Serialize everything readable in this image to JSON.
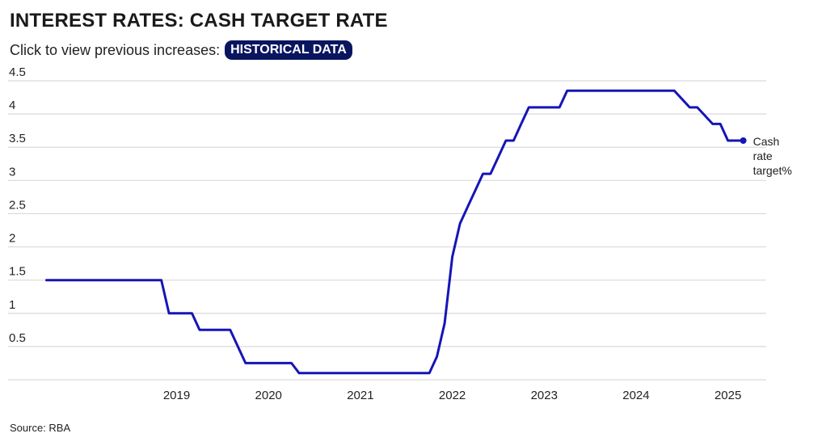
{
  "header": {
    "title": "INTEREST RATES: CASH TARGET RATE",
    "subtitle": "Click to view previous increases:",
    "button_label": "HISTORICAL DATA"
  },
  "footer": {
    "source": "Source: RBA"
  },
  "colors": {
    "line": "#1515b8",
    "accent": "#0a1560",
    "grid": "#d9d9d9"
  },
  "chart_data": {
    "type": "line",
    "title": "INTEREST RATES: CASH TARGET RATE",
    "xlabel": "",
    "ylabel": "",
    "ylim": [
      0,
      4.5
    ],
    "xlim": [
      "2018-01",
      "2025-12"
    ],
    "grid": true,
    "yticks": [
      "0.5",
      "1",
      "1.5",
      "2",
      "2.5",
      "3",
      "3.5",
      "4",
      "4.5"
    ],
    "xticks": [
      "2019",
      "2020",
      "2021",
      "2022",
      "2023",
      "2024",
      "2025"
    ],
    "series": [
      {
        "name": "Cash rate target%",
        "label_lines": [
          "Cash",
          "rate",
          "target%"
        ],
        "points": [
          {
            "x": "2018-02",
            "y": 1.5
          },
          {
            "x": "2019-05",
            "y": 1.5
          },
          {
            "x": "2019-06",
            "y": 1.0
          },
          {
            "x": "2019-09",
            "y": 1.0
          },
          {
            "x": "2019-10",
            "y": 0.75
          },
          {
            "x": "2020-02",
            "y": 0.75
          },
          {
            "x": "2020-03",
            "y": 0.5
          },
          {
            "x": "2020-04",
            "y": 0.25
          },
          {
            "x": "2020-10",
            "y": 0.25
          },
          {
            "x": "2020-11",
            "y": 0.1
          },
          {
            "x": "2022-04",
            "y": 0.1
          },
          {
            "x": "2022-05",
            "y": 0.35
          },
          {
            "x": "2022-06",
            "y": 0.85
          },
          {
            "x": "2022-07",
            "y": 1.85
          },
          {
            "x": "2022-08",
            "y": 2.35
          },
          {
            "x": "2022-09",
            "y": 2.6
          },
          {
            "x": "2022-10",
            "y": 2.85
          },
          {
            "x": "2022-11",
            "y": 3.1
          },
          {
            "x": "2022-12",
            "y": 3.1
          },
          {
            "x": "2023-01",
            "y": 3.35
          },
          {
            "x": "2023-02",
            "y": 3.6
          },
          {
            "x": "2023-03",
            "y": 3.6
          },
          {
            "x": "2023-04",
            "y": 3.85
          },
          {
            "x": "2023-05",
            "y": 4.1
          },
          {
            "x": "2023-09",
            "y": 4.1
          },
          {
            "x": "2023-10",
            "y": 4.35
          },
          {
            "x": "2024-12",
            "y": 4.35
          },
          {
            "x": "2025-02",
            "y": 4.1
          },
          {
            "x": "2025-03",
            "y": 4.1
          },
          {
            "x": "2025-05",
            "y": 3.85
          },
          {
            "x": "2025-06",
            "y": 3.85
          },
          {
            "x": "2025-07",
            "y": 3.6
          },
          {
            "x": "2025-09",
            "y": 3.6
          }
        ]
      }
    ]
  }
}
